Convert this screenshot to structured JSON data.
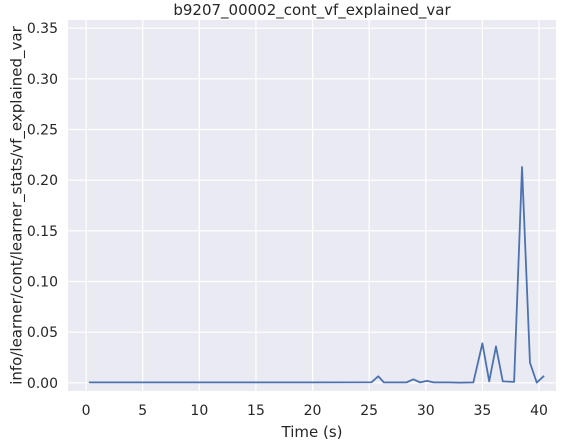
{
  "chart_data": {
    "type": "line",
    "title": "b9207_00002_cont_vf_explained_var",
    "xlabel": "Time (s)",
    "ylabel": "info/learner/cont/learner_stats/vf_explained_var",
    "xlim": [
      -1.6,
      41.5
    ],
    "ylim": [
      -0.008,
      0.358
    ],
    "xticks": [
      0,
      5,
      10,
      15,
      20,
      25,
      30,
      35,
      40
    ],
    "yticks": [
      0.0,
      0.05,
      0.1,
      0.15,
      0.2,
      0.25,
      0.3,
      0.35
    ],
    "xtick_labels": [
      "0",
      "5",
      "10",
      "15",
      "20",
      "25",
      "30",
      "35",
      "40"
    ],
    "ytick_labels": [
      "0.00",
      "0.05",
      "0.10",
      "0.15",
      "0.20",
      "0.25",
      "0.30",
      "0.35"
    ],
    "grid": true,
    "background": "#eaeaf2",
    "series": [
      {
        "color": "#4c72b0",
        "x": [
          0.3,
          5,
          10,
          15,
          20,
          25.2,
          25.8,
          26.3,
          28.3,
          28.9,
          29.5,
          30.1,
          30.7,
          32,
          33,
          34.2,
          35,
          35.6,
          36.2,
          36.8,
          37.8,
          38.5,
          39.2,
          39.8,
          40.4
        ],
        "y": [
          0.0005,
          0.0005,
          0.0005,
          0.0005,
          0.0005,
          0.0006,
          0.0065,
          0.0005,
          0.0005,
          0.0035,
          0.0005,
          0.002,
          0.0005,
          0.0005,
          0.0003,
          0.0005,
          0.039,
          0.0015,
          0.036,
          0.0015,
          0.001,
          0.213,
          0.02,
          0.0003,
          0.0065
        ]
      }
    ]
  }
}
